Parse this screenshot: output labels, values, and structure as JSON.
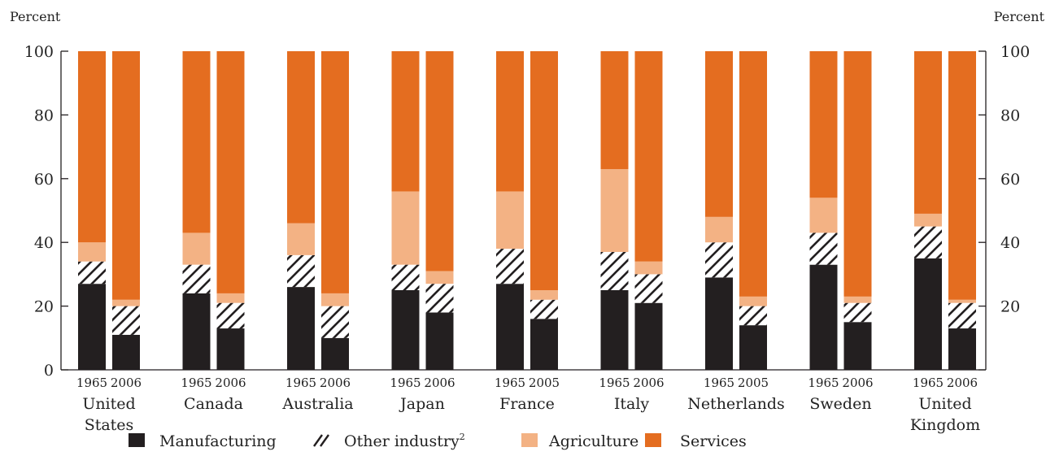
{
  "colors": {
    "manufacturing": "#231f20",
    "other_industry_bg": "#ffffff",
    "other_industry_hatch": "#231f20",
    "agriculture": "#f3b284",
    "services": "#e46d20",
    "axis": "#231f20"
  },
  "chart_data": {
    "type": "bar",
    "stacked": true,
    "left_axis_title": "Percent",
    "right_axis_title": "Percent",
    "ylim": [
      0,
      100
    ],
    "yticks": [
      "0",
      "20",
      "40",
      "60",
      "80",
      "100"
    ],
    "left_yticks": [
      "0",
      "20",
      "40",
      "60",
      "80",
      "100"
    ],
    "right_yticks": [
      "20",
      "40",
      "60",
      "80",
      "100"
    ],
    "grid": false,
    "legend_position": "bottom",
    "legend": [
      {
        "key": "manufacturing",
        "label": "Manufacturing",
        "sup": ""
      },
      {
        "key": "other_industry",
        "label": "Other industry",
        "sup": "2"
      },
      {
        "key": "agriculture",
        "label": "Agriculture",
        "sup": ""
      },
      {
        "key": "services",
        "label": "Services",
        "sup": ""
      }
    ],
    "groups": [
      {
        "country": [
          "United",
          "States"
        ],
        "bars": [
          {
            "year": "1965",
            "manufacturing": 27,
            "other_industry": 7,
            "agriculture": 6,
            "services": 60
          },
          {
            "year": "2006",
            "manufacturing": 11,
            "other_industry": 9,
            "agriculture": 2,
            "services": 78
          }
        ]
      },
      {
        "country": [
          "Canada"
        ],
        "bars": [
          {
            "year": "1965",
            "manufacturing": 24,
            "other_industry": 9,
            "agriculture": 10,
            "services": 57
          },
          {
            "year": "2006",
            "manufacturing": 13,
            "other_industry": 8,
            "agriculture": 3,
            "services": 76
          }
        ]
      },
      {
        "country": [
          "Australia"
        ],
        "bars": [
          {
            "year": "1965",
            "manufacturing": 26,
            "other_industry": 10,
            "agriculture": 10,
            "services": 54
          },
          {
            "year": "2006",
            "manufacturing": 10,
            "other_industry": 10,
            "agriculture": 4,
            "services": 76
          }
        ]
      },
      {
        "country": [
          "Japan"
        ],
        "bars": [
          {
            "year": "1965",
            "manufacturing": 25,
            "other_industry": 8,
            "agriculture": 23,
            "services": 44
          },
          {
            "year": "2006",
            "manufacturing": 18,
            "other_industry": 9,
            "agriculture": 4,
            "services": 69
          }
        ]
      },
      {
        "country": [
          "France"
        ],
        "bars": [
          {
            "year": "1965",
            "manufacturing": 27,
            "other_industry": 11,
            "agriculture": 18,
            "services": 44
          },
          {
            "year": "2005",
            "manufacturing": 16,
            "other_industry": 6,
            "agriculture": 3,
            "services": 75
          }
        ]
      },
      {
        "country": [
          "Italy"
        ],
        "bars": [
          {
            "year": "1965",
            "manufacturing": 25,
            "other_industry": 12,
            "agriculture": 26,
            "services": 37
          },
          {
            "year": "2006",
            "manufacturing": 21,
            "other_industry": 9,
            "agriculture": 4,
            "services": 66
          }
        ]
      },
      {
        "country": [
          "Netherlands"
        ],
        "bars": [
          {
            "year": "1965",
            "manufacturing": 29,
            "other_industry": 11,
            "agriculture": 8,
            "services": 52
          },
          {
            "year": "2005",
            "manufacturing": 14,
            "other_industry": 6,
            "agriculture": 3,
            "services": 77
          }
        ]
      },
      {
        "country": [
          "Sweden"
        ],
        "bars": [
          {
            "year": "1965",
            "manufacturing": 33,
            "other_industry": 10,
            "agriculture": 11,
            "services": 46
          },
          {
            "year": "2006",
            "manufacturing": 15,
            "other_industry": 6,
            "agriculture": 2,
            "services": 77
          }
        ]
      },
      {
        "country": [
          "United",
          "Kingdom"
        ],
        "bars": [
          {
            "year": "1965",
            "manufacturing": 35,
            "other_industry": 10,
            "agriculture": 4,
            "services": 51
          },
          {
            "year": "2006",
            "manufacturing": 13,
            "other_industry": 8,
            "agriculture": 1,
            "services": 78
          }
        ]
      }
    ]
  }
}
